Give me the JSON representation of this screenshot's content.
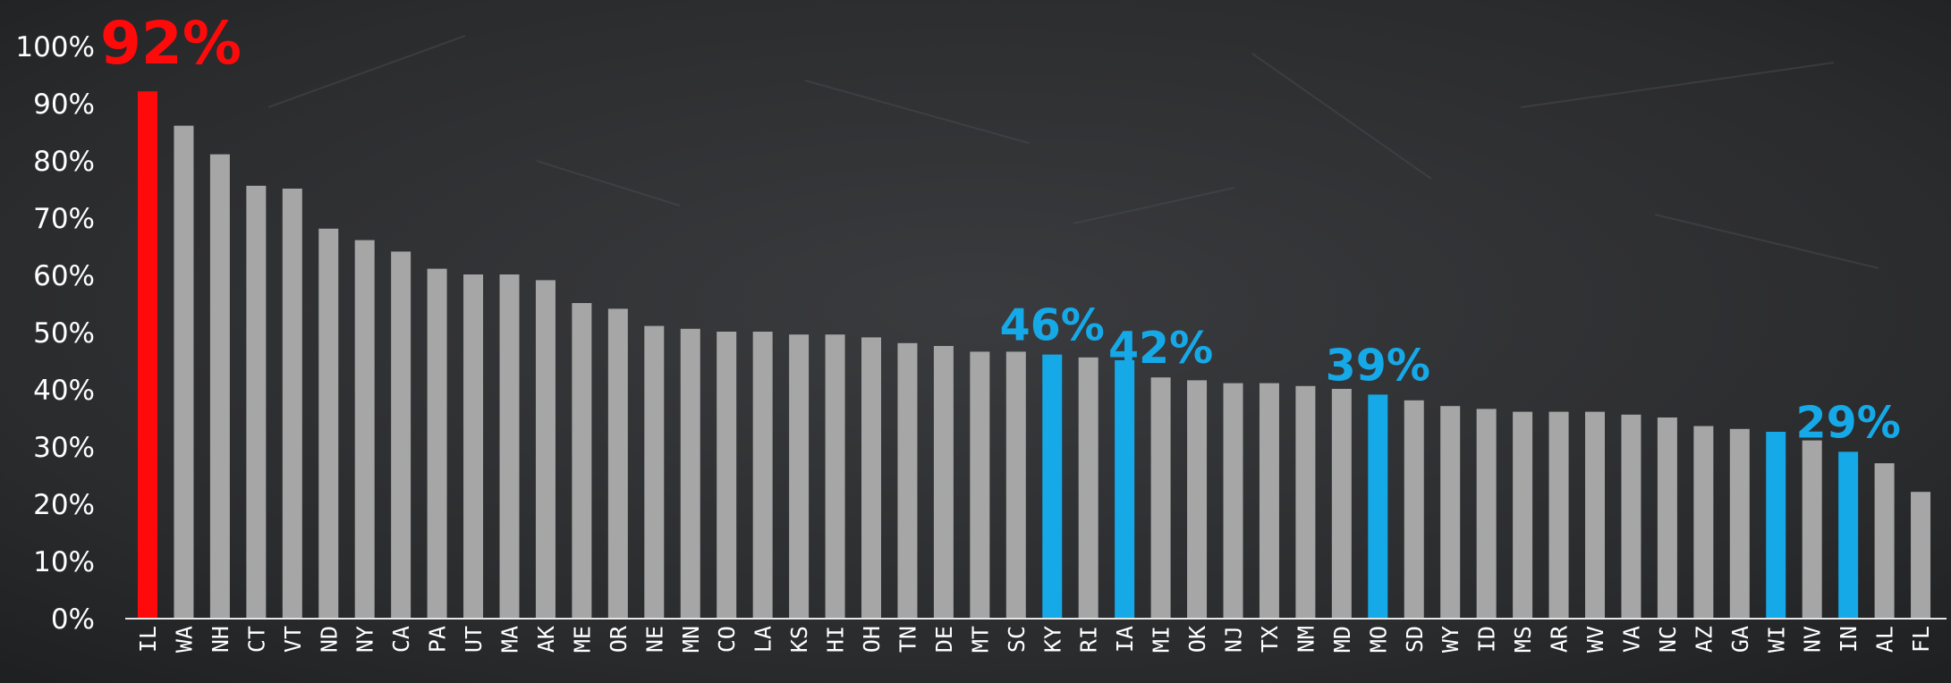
{
  "chart_data": {
    "type": "bar",
    "categories": [
      "IL",
      "WA",
      "NH",
      "CT",
      "VT",
      "ND",
      "NY",
      "CA",
      "PA",
      "UT",
      "MA",
      "AK",
      "ME",
      "OR",
      "NE",
      "MN",
      "CO",
      "LA",
      "KS",
      "HI",
      "OH",
      "TN",
      "DE",
      "MT",
      "SC",
      "KY",
      "RI",
      "IA",
      "MI",
      "OK",
      "NJ",
      "TX",
      "NM",
      "MD",
      "MO",
      "SD",
      "WY",
      "ID",
      "MS",
      "AR",
      "WV",
      "VA",
      "NC",
      "AZ",
      "GA",
      "WI",
      "NV",
      "IN",
      "AL",
      "FL"
    ],
    "values": [
      92,
      86,
      81,
      75.5,
      75,
      68,
      66,
      64,
      61,
      60,
      60,
      59,
      55,
      54,
      51,
      50.5,
      50,
      50,
      49.5,
      49.5,
      49,
      48,
      47.5,
      46.5,
      46.5,
      46,
      45.5,
      45,
      42,
      41.5,
      41,
      41,
      40.5,
      40,
      39,
      38,
      37,
      36.5,
      36,
      36,
      36,
      35.5,
      35,
      33.5,
      33,
      32.5,
      31,
      29,
      27,
      22
    ],
    "ylim": [
      0,
      100
    ],
    "yticks": [
      "0%",
      "10%",
      "20%",
      "30%",
      "40%",
      "50%",
      "60%",
      "70%",
      "80%",
      "90%",
      "100%"
    ],
    "colors": {
      "default": "#a6a6a6",
      "highlight_red": "#ff0a0a",
      "highlight_blue": "#16a9e8",
      "axis": "#e6e6e6",
      "tick_text": "#ffffff"
    },
    "highlights": {
      "IL": "highlight_red",
      "KY": "highlight_blue",
      "IA": "highlight_blue",
      "MO": "highlight_blue",
      "WI": "highlight_blue",
      "IN": "highlight_blue"
    },
    "annotations": [
      {
        "category": "IL",
        "text": "92%",
        "color": "highlight_red",
        "size": "large"
      },
      {
        "category": "KY",
        "text": "46%",
        "color": "highlight_blue",
        "size": "medium"
      },
      {
        "category": "MI",
        "text": "42%",
        "color": "highlight_blue",
        "size": "medium"
      },
      {
        "category": "MO",
        "text": "39%",
        "color": "highlight_blue",
        "size": "medium"
      },
      {
        "category": "IN",
        "text": "29%",
        "color": "highlight_blue",
        "size": "medium"
      }
    ],
    "grid": false,
    "legend": "none"
  }
}
